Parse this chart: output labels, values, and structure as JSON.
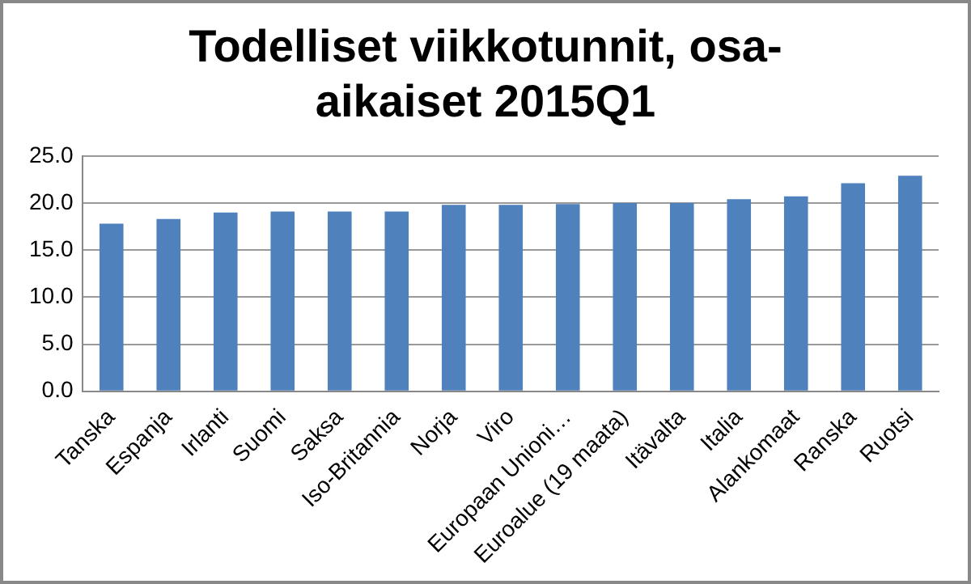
{
  "chart_data": {
    "type": "bar",
    "title": "Todelliset viikkotunnit, osa-aikaiset 2015Q1",
    "categories": [
      "Tanska",
      "Espanja",
      "Irlanti",
      "Suomi",
      "Saksa",
      "Iso-Britannia",
      "Norja",
      "Viro",
      "Europaan Unioni…",
      "Euroalue (19 maata)",
      "Itävalta",
      "Italia",
      "Alankomaat",
      "Ranska",
      "Ruotsi"
    ],
    "values": [
      17.8,
      18.3,
      19.0,
      19.1,
      19.1,
      19.1,
      19.8,
      19.8,
      19.9,
      20.0,
      20.0,
      20.4,
      20.7,
      22.1,
      22.9
    ],
    "color": "#4f81bd",
    "ylim": [
      0,
      25
    ],
    "yticks": [
      {
        "value": 0,
        "label": "0.0"
      },
      {
        "value": 5,
        "label": "5.0"
      },
      {
        "value": 10,
        "label": "10.0"
      },
      {
        "value": 15,
        "label": "15.0"
      },
      {
        "value": 20,
        "label": "20.0"
      },
      {
        "value": 25,
        "label": "25.0"
      }
    ],
    "grid": "y"
  }
}
